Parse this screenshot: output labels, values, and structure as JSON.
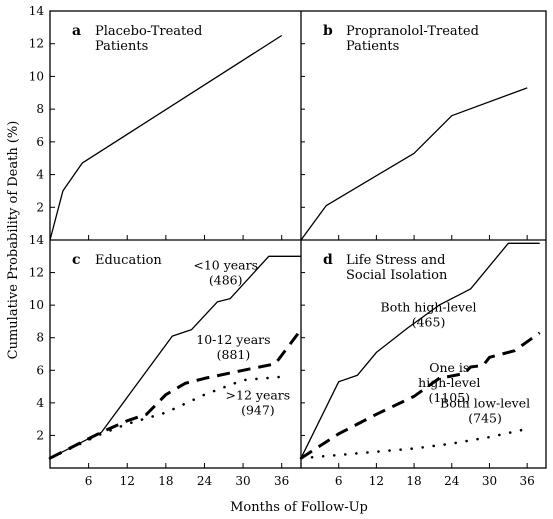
{
  "chart_data": {
    "type": "line",
    "ylabel": "Cumulative Probability of Death (%)",
    "xlabel": "Months of Follow-Up",
    "ylim": [
      0,
      14
    ],
    "xlim": [
      0,
      39
    ],
    "x_ticks": [
      6,
      12,
      18,
      24,
      30,
      36
    ],
    "y_ticks": [
      2,
      4,
      6,
      8,
      10,
      12,
      14
    ],
    "panels": [
      {
        "letter": "a",
        "title_lines": [
          "Placebo-Treated",
          "Patients"
        ],
        "series": [
          {
            "style": "solid",
            "x": [
              0,
              2,
              5,
              36
            ],
            "y": [
              0,
              3,
              4.7,
              12.5
            ]
          }
        ],
        "annotations": []
      },
      {
        "letter": "b",
        "title_lines": [
          "Propranolol-Treated",
          "Patients"
        ],
        "series": [
          {
            "style": "solid",
            "x": [
              0,
              4,
              18,
              24,
              36
            ],
            "y": [
              0,
              2.1,
              5.3,
              7.6,
              9.3
            ]
          }
        ],
        "annotations": []
      },
      {
        "letter": "c",
        "title_lines": [
          "Education"
        ],
        "series": [
          {
            "name": "<10 years (486)",
            "style": "solid",
            "x": [
              0,
              8,
              19,
              22,
              26,
              28,
              34,
              39
            ],
            "y": [
              0.6,
              2.2,
              8.1,
              8.5,
              10.2,
              10.4,
              13,
              13
            ]
          },
          {
            "name": "10-12 years (881)",
            "style": "dashed",
            "x": [
              0,
              8,
              12,
              15,
              18,
              21,
              24,
              30,
              35,
              39
            ],
            "y": [
              0.6,
              2.2,
              2.9,
              3.3,
              4.5,
              5.2,
              5.5,
              6,
              6.4,
              8.5
            ]
          },
          {
            "name": ">12 years (947)",
            "style": "dotted",
            "x": [
              0,
              8,
              12,
              18,
              24,
              30,
              36
            ],
            "y": [
              0.6,
              2.1,
              2.7,
              3.4,
              4.5,
              5.4,
              5.6
            ]
          }
        ],
        "annotations": [
          {
            "lines": [
              "<10 years",
              "(486)"
            ],
            "x": 27.3,
            "y": 12.2
          },
          {
            "lines": [
              "10-12 years",
              "(881)"
            ],
            "x": 28.5,
            "y": 7.6
          },
          {
            "lines": [
              ">12 years",
              "(947)"
            ],
            "x": 32.3,
            "y": 4.2
          }
        ]
      },
      {
        "letter": "d",
        "title_lines": [
          "Life Stress and",
          "Social Isolation"
        ],
        "series": [
          {
            "name": "Both high-level (465)",
            "style": "solid",
            "x": [
              0,
              6,
              9,
              12,
              17,
              22,
              27,
              33,
              38
            ],
            "y": [
              0.6,
              5.3,
              5.7,
              7.1,
              8.6,
              10,
              11,
              13.8,
              13.8
            ]
          },
          {
            "name": "One is high-level (1105)",
            "style": "dashed",
            "x": [
              0,
              6,
              12,
              18,
              22,
              26,
              27,
              29,
              30,
              34,
              38
            ],
            "y": [
              0.6,
              2.1,
              3.3,
              4.4,
              5.5,
              5.8,
              6.2,
              6.3,
              6.8,
              7.2,
              8.3
            ]
          },
          {
            "name": "Both low-level (745)",
            "style": "dotted",
            "x": [
              0,
              6,
              12,
              18,
              24,
              30,
              36
            ],
            "y": [
              0.6,
              0.8,
              1,
              1.2,
              1.5,
              1.9,
              2.4
            ]
          }
        ],
        "annotations": [
          {
            "lines": [
              "Both high-level",
              "(465)"
            ],
            "x": 20.3,
            "y": 9.6
          },
          {
            "lines": [
              "One is",
              "high-level",
              "(1105)"
            ],
            "x": 23.6,
            "y": 5.9
          },
          {
            "lines": [
              "Both low-level",
              "(745)"
            ],
            "x": 29.3,
            "y": 3.7
          }
        ]
      }
    ]
  }
}
